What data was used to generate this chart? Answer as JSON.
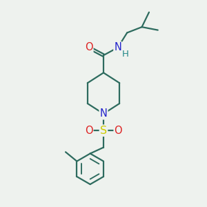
{
  "bg_color": "#eef2ee",
  "bond_color": "#2d6b5e",
  "N_color": "#2222cc",
  "O_color": "#dd2222",
  "S_color": "#cccc00",
  "H_color": "#228888",
  "font_size": 10.5,
  "bond_width": 1.6,
  "figsize": [
    3.0,
    3.0
  ],
  "dpi": 100,
  "xlim": [
    0,
    10
  ],
  "ylim": [
    0,
    10
  ]
}
